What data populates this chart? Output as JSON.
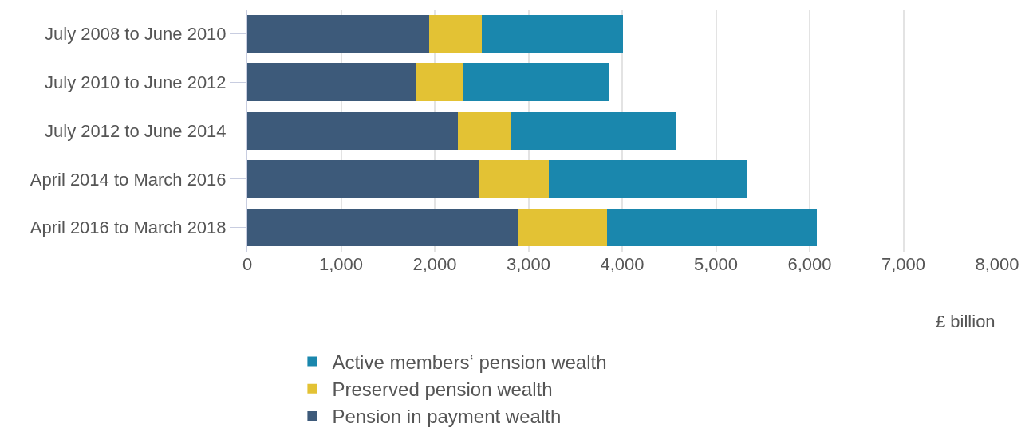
{
  "chart_data": {
    "type": "bar",
    "orientation": "horizontal",
    "stacked": true,
    "categories": [
      "July 2008 to June 2010",
      "July 2010 to June 2012",
      "July 2012 to June 2014",
      "April 2014 to March 2016",
      "April 2016 to March 2018"
    ],
    "series": [
      {
        "name": "Pension in payment wealth",
        "color": "#3d5a7a",
        "values": [
          1940,
          1800,
          2250,
          2480,
          2890
        ]
      },
      {
        "name": "Preserved pension wealth",
        "color": "#e3c234",
        "values": [
          560,
          510,
          560,
          740,
          950
        ]
      },
      {
        "name": "Active members‘ pension wealth",
        "color": "#1a87ad",
        "values": [
          1510,
          1550,
          1760,
          2120,
          2240
        ]
      }
    ],
    "xlabel": "£ billion",
    "xlim": [
      0,
      8000
    ],
    "xticks": [
      {
        "value": 0,
        "label": "0"
      },
      {
        "value": 1000,
        "label": "1,000"
      },
      {
        "value": 2000,
        "label": "2,000"
      },
      {
        "value": 3000,
        "label": "3,000"
      },
      {
        "value": 4000,
        "label": "4,000"
      },
      {
        "value": 5000,
        "label": "5,000"
      },
      {
        "value": 6000,
        "label": "6,000"
      },
      {
        "value": 7000,
        "label": "7,000"
      },
      {
        "value": 8000,
        "label": "8,000"
      }
    ],
    "grid": "x",
    "legend": "bottom"
  }
}
